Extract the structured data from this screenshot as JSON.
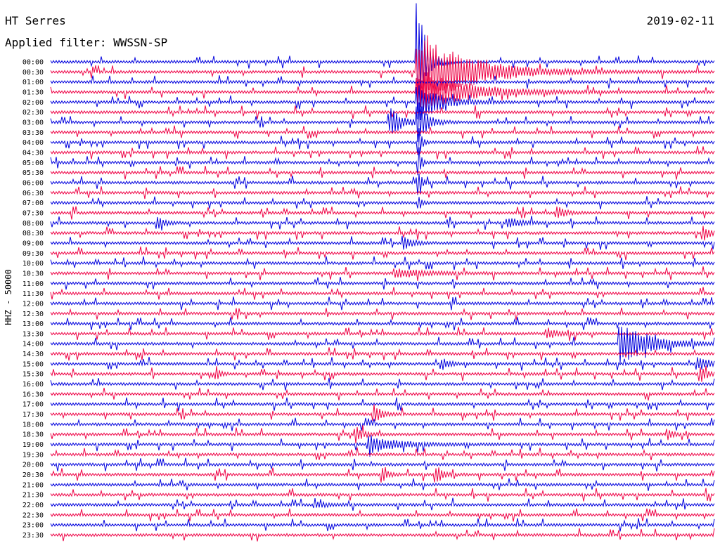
{
  "header": {
    "station": "HT Serres",
    "date": "2019-02-11",
    "filter_text": "Applied filter: WWSSN-SP"
  },
  "chart_data": {
    "type": "line",
    "title": "HT Serres",
    "subtitle": "Applied filter: WWSSN-SP",
    "ylabel": "HHZ - 50000",
    "series_colors": [
      "#0000dd",
      "#ee0044"
    ],
    "time_labels": [
      "00:00",
      "00:30",
      "01:00",
      "01:30",
      "02:00",
      "02:30",
      "03:00",
      "03:30",
      "04:00",
      "04:30",
      "05:00",
      "05:30",
      "06:00",
      "06:30",
      "07:00",
      "07:30",
      "08:00",
      "08:30",
      "09:00",
      "09:30",
      "10:00",
      "10:30",
      "11:00",
      "11:30",
      "12:00",
      "12:30",
      "13:00",
      "13:30",
      "14:00",
      "14:30",
      "15:00",
      "15:30",
      "16:00",
      "16:30",
      "17:00",
      "17:30",
      "18:00",
      "18:30",
      "19:00",
      "19:30",
      "20:00",
      "20:30",
      "21:00",
      "21:30",
      "22:00",
      "22:30",
      "23:00",
      "23:30"
    ],
    "events": [
      {
        "line": 0,
        "t": 0.553,
        "amp": 90,
        "dur": 0.012
      },
      {
        "line": 1,
        "t": 0.553,
        "amp": 60,
        "dur": 0.07
      },
      {
        "line": 3,
        "t": 0.553,
        "amp": 32,
        "dur": 0.07
      },
      {
        "line": 4,
        "t": 0.553,
        "amp": 30,
        "dur": 0.03
      },
      {
        "line": 6,
        "t": 0.512,
        "amp": 20,
        "dur": 0.018
      },
      {
        "line": 6,
        "t": 0.553,
        "amp": 38,
        "dur": 0.012
      },
      {
        "line": 8,
        "t": 0.555,
        "amp": 26,
        "dur": 0.004
      },
      {
        "line": 10,
        "t": 0.555,
        "amp": 22,
        "dur": 0.004
      },
      {
        "line": 12,
        "t": 0.555,
        "amp": 18,
        "dur": 0.004
      },
      {
        "line": 14,
        "t": 0.555,
        "amp": 12,
        "dur": 0.004
      },
      {
        "line": 15,
        "t": 0.764,
        "amp": 8,
        "dur": 0.012
      },
      {
        "line": 16,
        "t": 0.162,
        "amp": 8,
        "dur": 0.01
      },
      {
        "line": 16,
        "t": 0.69,
        "amp": 7,
        "dur": 0.02
      },
      {
        "line": 17,
        "t": 0.985,
        "amp": 9,
        "dur": 0.012
      },
      {
        "line": 18,
        "t": 0.532,
        "amp": 11,
        "dur": 0.012
      },
      {
        "line": 21,
        "t": 0.52,
        "amp": 6,
        "dur": 0.05
      },
      {
        "line": 27,
        "t": 0.748,
        "amp": 9,
        "dur": 0.014
      },
      {
        "line": 28,
        "t": 0.858,
        "amp": 32,
        "dur": 0.04
      },
      {
        "line": 30,
        "t": 0.59,
        "amp": 8,
        "dur": 0.01
      },
      {
        "line": 30,
        "t": 0.975,
        "amp": 9,
        "dur": 0.02
      },
      {
        "line": 31,
        "t": 0.25,
        "amp": 10,
        "dur": 0.006
      },
      {
        "line": 31,
        "t": 0.98,
        "amp": 11,
        "dur": 0.01
      },
      {
        "line": 35,
        "t": 0.488,
        "amp": 13,
        "dur": 0.01
      },
      {
        "line": 37,
        "t": 0.46,
        "amp": 12,
        "dur": 0.01
      },
      {
        "line": 37,
        "t": 0.93,
        "amp": 8,
        "dur": 0.008
      },
      {
        "line": 38,
        "t": 0.482,
        "amp": 12,
        "dur": 0.04
      },
      {
        "line": 41,
        "t": 0.5,
        "amp": 10,
        "dur": 0.008
      },
      {
        "line": 41,
        "t": 0.582,
        "amp": 12,
        "dur": 0.01
      },
      {
        "line": 44,
        "t": 0.4,
        "amp": 4,
        "dur": 0.02
      }
    ]
  }
}
